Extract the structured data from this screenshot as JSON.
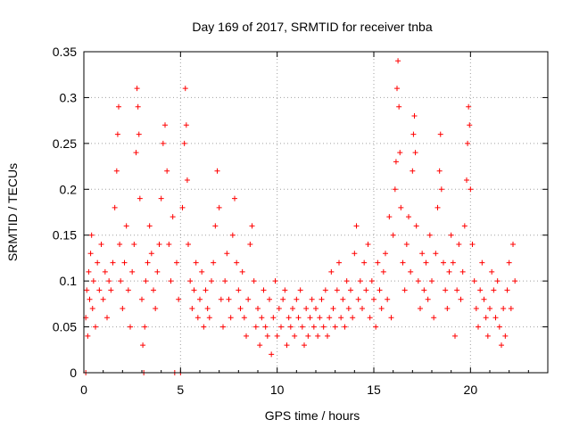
{
  "chart_data": {
    "type": "scatter",
    "title": "Day 169 of 2017, SRMTID for receiver tnba",
    "xlabel": "GPS time / hours",
    "ylabel": "SRMTID / TECUs",
    "xlim": [
      0,
      24
    ],
    "ylim": [
      0,
      0.35
    ],
    "xticks": [
      0,
      5,
      10,
      15,
      20
    ],
    "yticks": [
      0,
      0.05,
      0.1,
      0.15,
      0.2,
      0.25,
      0.3,
      0.35
    ],
    "xtick_labels": [
      "0",
      "5",
      "10",
      "15",
      "20"
    ],
    "ytick_labels": [
      "0",
      "0.05",
      "0.1",
      "0.15",
      "0.2",
      "0.25",
      "0.3",
      "0.35"
    ],
    "grid": true,
    "marker": "+",
    "color": "#ff0000",
    "series": [
      {
        "name": "SRMTID",
        "points": [
          [
            0.1,
            0.0
          ],
          [
            0.1,
            0.06
          ],
          [
            0.15,
            0.09
          ],
          [
            0.2,
            0.04
          ],
          [
            0.25,
            0.11
          ],
          [
            0.3,
            0.08
          ],
          [
            0.35,
            0.13
          ],
          [
            0.4,
            0.15
          ],
          [
            0.45,
            0.07
          ],
          [
            0.5,
            0.1
          ],
          [
            0.6,
            0.05
          ],
          [
            0.7,
            0.12
          ],
          [
            0.8,
            0.09
          ],
          [
            0.9,
            0.14
          ],
          [
            1.0,
            0.08
          ],
          [
            1.1,
            0.11
          ],
          [
            1.2,
            0.06
          ],
          [
            1.3,
            0.1
          ],
          [
            1.4,
            0.09
          ],
          [
            1.5,
            0.12
          ],
          [
            1.6,
            0.18
          ],
          [
            1.7,
            0.22
          ],
          [
            1.75,
            0.26
          ],
          [
            1.8,
            0.29
          ],
          [
            1.85,
            0.14
          ],
          [
            1.9,
            0.1
          ],
          [
            2.0,
            0.07
          ],
          [
            2.1,
            0.12
          ],
          [
            2.2,
            0.16
          ],
          [
            2.3,
            0.09
          ],
          [
            2.4,
            0.05
          ],
          [
            2.5,
            0.11
          ],
          [
            2.6,
            0.14
          ],
          [
            2.7,
            0.24
          ],
          [
            2.75,
            0.31
          ],
          [
            2.8,
            0.29
          ],
          [
            2.85,
            0.26
          ],
          [
            2.9,
            0.19
          ],
          [
            3.0,
            0.08
          ],
          [
            3.05,
            0.03
          ],
          [
            3.1,
            0.0
          ],
          [
            3.15,
            0.05
          ],
          [
            3.2,
            0.1
          ],
          [
            3.3,
            0.12
          ],
          [
            3.4,
            0.16
          ],
          [
            3.5,
            0.13
          ],
          [
            3.6,
            0.09
          ],
          [
            3.7,
            0.07
          ],
          [
            3.8,
            0.11
          ],
          [
            3.9,
            0.14
          ],
          [
            4.0,
            0.19
          ],
          [
            4.1,
            0.25
          ],
          [
            4.2,
            0.27
          ],
          [
            4.3,
            0.22
          ],
          [
            4.4,
            0.14
          ],
          [
            4.5,
            0.1
          ],
          [
            4.6,
            0.17
          ],
          [
            4.7,
            0.0
          ],
          [
            4.8,
            0.12
          ],
          [
            4.9,
            0.08
          ],
          [
            5.0,
            0.0
          ],
          [
            5.1,
            0.18
          ],
          [
            5.2,
            0.25
          ],
          [
            5.25,
            0.31
          ],
          [
            5.3,
            0.27
          ],
          [
            5.35,
            0.21
          ],
          [
            5.4,
            0.14
          ],
          [
            5.5,
            0.1
          ],
          [
            5.6,
            0.07
          ],
          [
            5.7,
            0.09
          ],
          [
            5.8,
            0.12
          ],
          [
            5.9,
            0.06
          ],
          [
            6.0,
            0.08
          ],
          [
            6.1,
            0.11
          ],
          [
            6.2,
            0.05
          ],
          [
            6.3,
            0.09
          ],
          [
            6.4,
            0.07
          ],
          [
            6.5,
            0.06
          ],
          [
            6.6,
            0.1
          ],
          [
            6.7,
            0.12
          ],
          [
            6.8,
            0.16
          ],
          [
            6.9,
            0.22
          ],
          [
            7.0,
            0.18
          ],
          [
            7.1,
            0.08
          ],
          [
            7.2,
            0.05
          ],
          [
            7.3,
            0.1
          ],
          [
            7.4,
            0.13
          ],
          [
            7.5,
            0.08
          ],
          [
            7.6,
            0.06
          ],
          [
            7.7,
            0.15
          ],
          [
            7.8,
            0.19
          ],
          [
            7.9,
            0.12
          ],
          [
            8.0,
            0.09
          ],
          [
            8.1,
            0.07
          ],
          [
            8.2,
            0.11
          ],
          [
            8.3,
            0.06
          ],
          [
            8.4,
            0.04
          ],
          [
            8.5,
            0.08
          ],
          [
            8.6,
            0.14
          ],
          [
            8.7,
            0.16
          ],
          [
            8.8,
            0.1
          ],
          [
            8.9,
            0.05
          ],
          [
            9.0,
            0.07
          ],
          [
            9.1,
            0.03
          ],
          [
            9.2,
            0.06
          ],
          [
            9.3,
            0.09
          ],
          [
            9.4,
            0.05
          ],
          [
            9.5,
            0.04
          ],
          [
            9.6,
            0.08
          ],
          [
            9.7,
            0.02
          ],
          [
            9.8,
            0.06
          ],
          [
            9.9,
            0.1
          ],
          [
            10.0,
            0.04
          ],
          [
            10.1,
            0.07
          ],
          [
            10.2,
            0.05
          ],
          [
            10.3,
            0.08
          ],
          [
            10.4,
            0.09
          ],
          [
            10.5,
            0.03
          ],
          [
            10.6,
            0.06
          ],
          [
            10.7,
            0.05
          ],
          [
            10.8,
            0.07
          ],
          [
            10.9,
            0.04
          ],
          [
            11.0,
            0.08
          ],
          [
            11.1,
            0.06
          ],
          [
            11.2,
            0.09
          ],
          [
            11.3,
            0.05
          ],
          [
            11.4,
            0.03
          ],
          [
            11.5,
            0.07
          ],
          [
            11.6,
            0.04
          ],
          [
            11.7,
            0.06
          ],
          [
            11.8,
            0.08
          ],
          [
            11.9,
            0.05
          ],
          [
            12.0,
            0.07
          ],
          [
            12.1,
            0.04
          ],
          [
            12.2,
            0.06
          ],
          [
            12.3,
            0.08
          ],
          [
            12.4,
            0.05
          ],
          [
            12.5,
            0.09
          ],
          [
            12.6,
            0.04
          ],
          [
            12.7,
            0.06
          ],
          [
            12.8,
            0.11
          ],
          [
            12.9,
            0.07
          ],
          [
            13.0,
            0.05
          ],
          [
            13.1,
            0.09
          ],
          [
            13.2,
            0.12
          ],
          [
            13.3,
            0.06
          ],
          [
            13.4,
            0.08
          ],
          [
            13.5,
            0.05
          ],
          [
            13.6,
            0.1
          ],
          [
            13.7,
            0.07
          ],
          [
            13.8,
            0.09
          ],
          [
            13.9,
            0.06
          ],
          [
            14.0,
            0.13
          ],
          [
            14.1,
            0.16
          ],
          [
            14.2,
            0.08
          ],
          [
            14.3,
            0.1
          ],
          [
            14.4,
            0.07
          ],
          [
            14.5,
            0.12
          ],
          [
            14.6,
            0.09
          ],
          [
            14.7,
            0.14
          ],
          [
            14.8,
            0.06
          ],
          [
            14.9,
            0.1
          ],
          [
            15.0,
            0.08
          ],
          [
            15.1,
            0.05
          ],
          [
            15.2,
            0.12
          ],
          [
            15.3,
            0.09
          ],
          [
            15.4,
            0.07
          ],
          [
            15.5,
            0.11
          ],
          [
            15.6,
            0.13
          ],
          [
            15.7,
            0.08
          ],
          [
            15.8,
            0.17
          ],
          [
            15.9,
            0.06
          ],
          [
            16.0,
            0.15
          ],
          [
            16.1,
            0.2
          ],
          [
            16.15,
            0.23
          ],
          [
            16.2,
            0.31
          ],
          [
            16.25,
            0.34
          ],
          [
            16.3,
            0.29
          ],
          [
            16.35,
            0.24
          ],
          [
            16.4,
            0.18
          ],
          [
            16.5,
            0.12
          ],
          [
            16.6,
            0.09
          ],
          [
            16.7,
            0.14
          ],
          [
            16.8,
            0.17
          ],
          [
            16.9,
            0.11
          ],
          [
            17.0,
            0.22
          ],
          [
            17.05,
            0.26
          ],
          [
            17.1,
            0.28
          ],
          [
            17.15,
            0.24
          ],
          [
            17.2,
            0.16
          ],
          [
            17.3,
            0.1
          ],
          [
            17.4,
            0.07
          ],
          [
            17.5,
            0.13
          ],
          [
            17.6,
            0.09
          ],
          [
            17.7,
            0.12
          ],
          [
            17.8,
            0.08
          ],
          [
            17.9,
            0.15
          ],
          [
            18.0,
            0.1
          ],
          [
            18.1,
            0.06
          ],
          [
            18.2,
            0.13
          ],
          [
            18.3,
            0.18
          ],
          [
            18.4,
            0.22
          ],
          [
            18.45,
            0.26
          ],
          [
            18.5,
            0.2
          ],
          [
            18.6,
            0.12
          ],
          [
            18.7,
            0.09
          ],
          [
            18.8,
            0.07
          ],
          [
            18.9,
            0.11
          ],
          [
            19.0,
            0.15
          ],
          [
            19.1,
            0.12
          ],
          [
            19.2,
            0.04
          ],
          [
            19.3,
            0.09
          ],
          [
            19.4,
            0.14
          ],
          [
            19.5,
            0.08
          ],
          [
            19.6,
            0.11
          ],
          [
            19.7,
            0.16
          ],
          [
            19.8,
            0.21
          ],
          [
            19.85,
            0.25
          ],
          [
            19.9,
            0.29
          ],
          [
            19.95,
            0.27
          ],
          [
            20.0,
            0.2
          ],
          [
            20.1,
            0.14
          ],
          [
            20.2,
            0.1
          ],
          [
            20.3,
            0.07
          ],
          [
            20.4,
            0.05
          ],
          [
            20.5,
            0.09
          ],
          [
            20.6,
            0.12
          ],
          [
            20.7,
            0.08
          ],
          [
            20.8,
            0.06
          ],
          [
            20.9,
            0.04
          ],
          [
            21.0,
            0.07
          ],
          [
            21.1,
            0.11
          ],
          [
            21.2,
            0.09
          ],
          [
            21.3,
            0.06
          ],
          [
            21.4,
            0.1
          ],
          [
            21.5,
            0.05
          ],
          [
            21.6,
            0.03
          ],
          [
            21.7,
            0.07
          ],
          [
            21.8,
            0.04
          ],
          [
            21.9,
            0.09
          ],
          [
            22.0,
            0.12
          ],
          [
            22.1,
            0.07
          ],
          [
            22.2,
            0.14
          ],
          [
            22.3,
            0.1
          ]
        ]
      }
    ]
  }
}
